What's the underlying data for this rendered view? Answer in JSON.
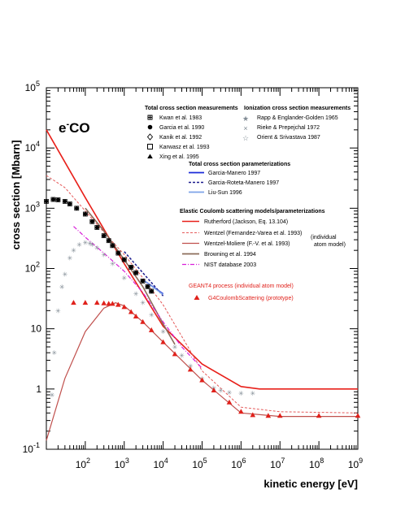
{
  "chart_data": {
    "type": "scatter",
    "title": "e-CO",
    "title_main": "e",
    "title_sup": "-",
    "title_rest": "CO",
    "xlabel": "kinetic energy [eV]",
    "ylabel": "cross section [Mbarn]",
    "x_scale": "log",
    "y_scale": "log",
    "xlim": [
      10,
      1000000000
    ],
    "ylim": [
      0.1,
      100000
    ],
    "grid": false,
    "x_ticks": [
      {
        "base": "10",
        "exp": "2",
        "value": 100
      },
      {
        "base": "10",
        "exp": "3",
        "value": 1000
      },
      {
        "base": "10",
        "exp": "4",
        "value": 10000
      },
      {
        "base": "10",
        "exp": "5",
        "value": 100000
      },
      {
        "base": "10",
        "exp": "6",
        "value": 1000000
      },
      {
        "base": "10",
        "exp": "7",
        "value": 10000000
      },
      {
        "base": "10",
        "exp": "8",
        "value": 100000000
      },
      {
        "base": "10",
        "exp": "9",
        "value": 1000000000
      }
    ],
    "y_ticks": [
      {
        "label": "10",
        "exp": "-1",
        "value": 0.1
      },
      {
        "label": "1",
        "exp": "",
        "value": 1
      },
      {
        "label": "10",
        "exp": "",
        "value": 10
      },
      {
        "label": "10",
        "exp": "2",
        "value": 100
      },
      {
        "label": "10",
        "exp": "3",
        "value": 1000
      },
      {
        "label": "10",
        "exp": "4",
        "value": 10000
      },
      {
        "label": "10",
        "exp": "5",
        "value": 100000
      }
    ],
    "legend_groups": [
      {
        "title": "Total cross section measurements",
        "entries": [
          "Kwan et al. 1983",
          "Garcia et al. 1990",
          "Kanik et al. 1992",
          "Karwasz et al. 1993",
          "Xing et al. 1995"
        ]
      },
      {
        "title": "Ionization cross section measurements",
        "entries": [
          "Rapp & Englander-Golden 1965",
          "Rieke & Prepejchal 1972",
          "Orient & Srivastava 1987"
        ]
      },
      {
        "title": "Total cross section parameterizations",
        "entries": [
          "Garcia-Manero 1997",
          "Garcia-Roteta-Manero 1997",
          "Liu-Sun 1996"
        ]
      },
      {
        "title": "Elastic Coulomb scattering models/parameterizations",
        "entries": [
          "Rutherford (Jackson, Eq. 13.104)",
          "Wentzel (Fernandez-Varea et al. 1993)",
          "Wentzel-Moliere (F.-V. et al. 1993)",
          "Browning et al. 1994",
          "NIST database 2003"
        ]
      },
      {
        "title": "GEANT4 process (individual atom model)",
        "entries": [
          "G4CoulombScattering (prototype)"
        ]
      }
    ],
    "annotation": [
      "(individual",
      "atom model)"
    ],
    "colors": {
      "rutherford": "#e8201a",
      "wentzel": "#e55a5a",
      "wentzel_moliere": "#c0504d",
      "browning": "#8b6b5a",
      "nist": "#d91fd9",
      "garcia_manero": "#1a2bd9",
      "garcia_roteta": "#1a1a8c",
      "liu_sun": "#7da3e8",
      "ionization": "#7f8a93",
      "g4": "#e0211b",
      "measure": "#000000"
    },
    "series": [
      {
        "name": "Rutherford (Jackson, Eq. 13.104)",
        "kind": "line",
        "x": [
          10,
          100,
          1000,
          10000,
          100000,
          1000000,
          3000000,
          1000000000
        ],
        "y": [
          20000,
          1500,
          120,
          11,
          2.6,
          1.1,
          1.0,
          1.0
        ]
      },
      {
        "name": "Wentzel (Fernandez-Varea et al. 1993)",
        "kind": "line",
        "x": [
          10,
          30,
          100,
          300,
          1000,
          3000,
          10000,
          100000,
          1000000,
          10000000,
          1000000000
        ],
        "y": [
          3500,
          2200,
          900,
          400,
          170,
          70,
          25,
          2.0,
          0.5,
          0.42,
          0.4
        ]
      },
      {
        "name": "Wentzel-Moliere (F.-V. et al. 1993)",
        "kind": "line",
        "x": [
          10,
          30,
          100,
          300,
          600,
          1000,
          3000,
          10000,
          30000,
          100000,
          1000000,
          10000000,
          1000000000
        ],
        "y": [
          0.14,
          1.5,
          9,
          22,
          27,
          24,
          13,
          6,
          3,
          1.4,
          0.4,
          0.35,
          0.35
        ]
      },
      {
        "name": "Browning et al. 1994",
        "kind": "line",
        "x": [
          100,
          300,
          1000,
          3000,
          10000,
          20000
        ],
        "y": [
          1000,
          420,
          140,
          50,
          12,
          5.5
        ]
      },
      {
        "name": "NIST database 2003",
        "kind": "line",
        "x": [
          50,
          100,
          300,
          1000,
          3000,
          10000,
          30000,
          100000
        ],
        "y": [
          500,
          330,
          180,
          90,
          40,
          13,
          5,
          2.2
        ]
      },
      {
        "name": "Garcia-Manero 1997",
        "kind": "line",
        "x": [
          3000,
          10000
        ],
        "y": [
          65,
          38
        ]
      },
      {
        "name": "Garcia-Roteta-Manero 1997",
        "kind": "line",
        "x": [
          1000,
          3000,
          10000
        ],
        "y": [
          190,
          85,
          35
        ]
      },
      {
        "name": "Liu-Sun 1996",
        "kind": "line",
        "x": [
          3000,
          10000
        ],
        "y": [
          65,
          37
        ]
      },
      {
        "name": "Total cross section measurements",
        "kind": "markers",
        "x": [
          10,
          15,
          20,
          30,
          40,
          60,
          100,
          150,
          200,
          300,
          400,
          500,
          700,
          1000,
          1500,
          2000,
          3000,
          4000,
          5000
        ],
        "y": [
          1300,
          1400,
          1380,
          1300,
          1180,
          1000,
          800,
          600,
          480,
          350,
          290,
          240,
          180,
          140,
          105,
          85,
          62,
          50,
          42
        ]
      },
      {
        "name": "Ionization cross section measurements",
        "kind": "markers",
        "x": [
          14,
          16,
          20,
          25,
          30,
          40,
          50,
          70,
          100,
          130,
          150,
          200,
          300,
          500,
          1000,
          2000,
          3000,
          5000,
          10000,
          20000,
          30000,
          50000,
          100000,
          200000,
          300000,
          500000,
          1000000,
          2000000
        ],
        "y": [
          0.8,
          4,
          20,
          50,
          80,
          150,
          200,
          250,
          270,
          260,
          250,
          220,
          170,
          120,
          70,
          38,
          27,
          17,
          9,
          5,
          3.6,
          2.4,
          1.5,
          1.05,
          0.95,
          0.88,
          0.85,
          0.85
        ]
      },
      {
        "name": "G4CoulombScattering (prototype)",
        "kind": "triangles",
        "x": [
          50,
          100,
          200,
          300,
          400,
          500,
          700,
          1000,
          1500,
          2000,
          3000,
          5000,
          10000,
          20000,
          50000,
          100000,
          200000,
          500000,
          1000000,
          2000000,
          5000000,
          10000000,
          100000000,
          1000000000
        ],
        "y": [
          27,
          27,
          27,
          26.5,
          26,
          26,
          25,
          23,
          19,
          16,
          13,
          9.5,
          6,
          3.8,
          2.1,
          1.4,
          0.95,
          0.6,
          0.42,
          0.37,
          0.36,
          0.36,
          0.36,
          0.36
        ]
      }
    ]
  }
}
